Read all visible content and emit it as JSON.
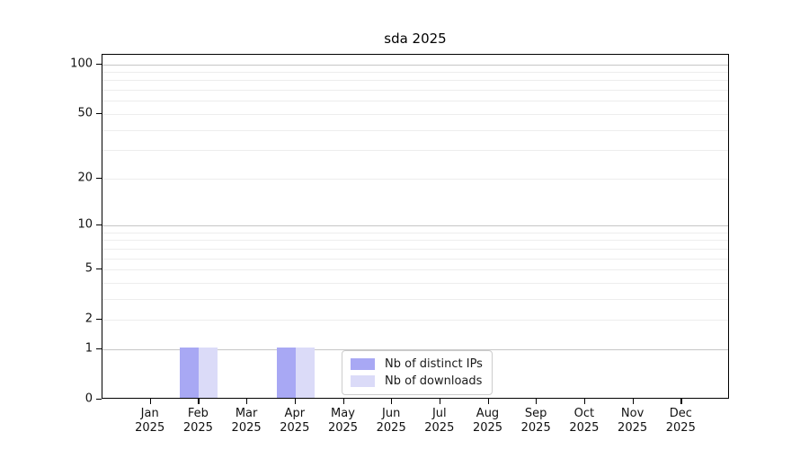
{
  "chart_data": {
    "type": "bar",
    "title": "sda 2025",
    "categories": [
      "Jan",
      "Feb",
      "Mar",
      "Apr",
      "May",
      "Jun",
      "Jul",
      "Aug",
      "Sep",
      "Oct",
      "Nov",
      "Dec"
    ],
    "x_year_label": "2025",
    "series": [
      {
        "name": "Nb of distinct IPs",
        "color": "#a8a8f4",
        "values": [
          0,
          1,
          0,
          1,
          0,
          0,
          0,
          0,
          0,
          0,
          0,
          0
        ]
      },
      {
        "name": "Nb of downloads",
        "color": "#dbdbf8",
        "values": [
          0,
          1,
          0,
          1,
          0,
          0,
          0,
          0,
          0,
          0,
          0,
          0
        ]
      }
    ],
    "xlabel": "",
    "ylabel": "",
    "y_scale": "log10(v+1)",
    "ylim": [
      0,
      114
    ],
    "y_ticks": [
      0,
      1,
      2,
      5,
      10,
      20,
      50,
      100
    ],
    "major_gridlines": [
      1,
      10,
      100
    ],
    "minor_gridlines": [
      2,
      3,
      4,
      5,
      6,
      7,
      8,
      9,
      20,
      30,
      40,
      50,
      60,
      70,
      80,
      90
    ],
    "grid": "horizontal",
    "legend_position": "inside bottom-center",
    "colors": {
      "major_grid": "#c6c6c6",
      "minor_grid": "#ededed",
      "axis": "#000000",
      "background": "#ffffff"
    }
  }
}
